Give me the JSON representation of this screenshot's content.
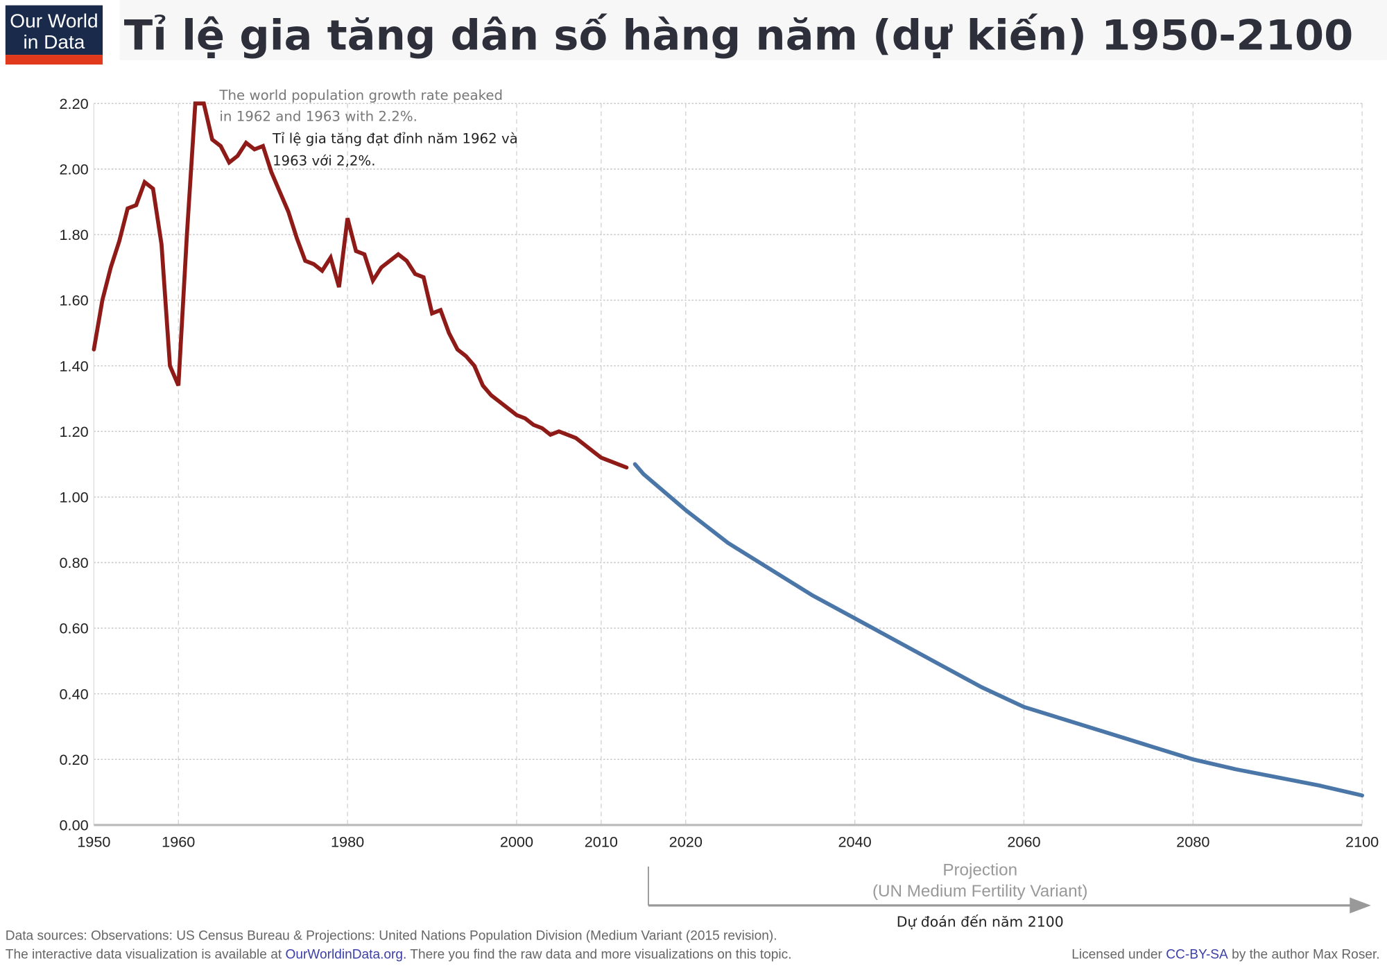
{
  "header": {
    "logo_line1": "Our World",
    "logo_line2": "in Data",
    "title": "Tỉ lệ gia tăng dân số hàng năm (dự kiến) 1950-2100"
  },
  "colors": {
    "observed": "#8e1b17",
    "projection": "#4a76a8",
    "logo_bg": "#1a2a4a",
    "logo_accent": "#e0391b",
    "link": "#3b3fa8"
  },
  "annotations": {
    "peak_en_1": "The world population growth rate peaked",
    "peak_en_2": "in 1962 and 1963 with 2.2%.",
    "peak_vi_1": "Tỉ lệ gia tăng đạt đỉnh năm 1962 và",
    "peak_vi_2": "1963 với 2,2%.",
    "projection_1": "Projection",
    "projection_2": "(UN Medium Fertility Variant)",
    "projection_vi": "Dự đoán đến năm 2100"
  },
  "footer": {
    "sources": "Data sources: Observations: US Census Bureau & Projections: United Nations Population Division (Medium Variant (2015 revision).",
    "interactive_pre": "The interactive data visualization is available at ",
    "interactive_link": "OurWorldinData.org.",
    "interactive_post": " There you find the raw data and more visualizations on this topic.",
    "license_pre": "Licensed under ",
    "license_link": "CC-BY-SA",
    "license_post": " by the author Max Roser."
  },
  "chart_data": {
    "type": "line",
    "title": "Tỉ lệ gia tăng dân số hàng năm (dự kiến) 1950-2100",
    "xlim": [
      1950,
      2100
    ],
    "ylim": [
      0,
      2.2
    ],
    "x_ticks": [
      "1950",
      "1960",
      "1980",
      "2000",
      "2010",
      "2020",
      "2040",
      "2060",
      "2080",
      "2100"
    ],
    "y_ticks": [
      "0.00",
      "0.20",
      "0.40",
      "0.60",
      "0.80",
      "1.00",
      "1.20",
      "1.40",
      "1.60",
      "1.80",
      "2.00",
      "2.20"
    ],
    "grid": true,
    "series": [
      {
        "key": "observed",
        "x": [
          1950,
          1951,
          1952,
          1953,
          1954,
          1955,
          1956,
          1957,
          1958,
          1959,
          1960,
          1961,
          1962,
          1963,
          1964,
          1965,
          1966,
          1967,
          1968,
          1969,
          1970,
          1971,
          1972,
          1973,
          1974,
          1975,
          1976,
          1977,
          1978,
          1979,
          1980,
          1981,
          1982,
          1983,
          1984,
          1985,
          1986,
          1987,
          1988,
          1989,
          1990,
          1991,
          1992,
          1993,
          1994,
          1995,
          1996,
          1997,
          1998,
          1999,
          2000,
          2001,
          2002,
          2003,
          2004,
          2005,
          2006,
          2007,
          2008,
          2009,
          2010,
          2011,
          2012,
          2013
        ],
        "y": [
          1.45,
          1.6,
          1.7,
          1.78,
          1.88,
          1.89,
          1.96,
          1.94,
          1.77,
          1.4,
          1.34,
          1.8,
          2.2,
          2.2,
          2.09,
          2.07,
          2.02,
          2.04,
          2.08,
          2.06,
          2.07,
          1.99,
          1.93,
          1.87,
          1.79,
          1.72,
          1.71,
          1.69,
          1.73,
          1.64,
          1.85,
          1.75,
          1.74,
          1.66,
          1.7,
          1.72,
          1.74,
          1.72,
          1.68,
          1.67,
          1.56,
          1.57,
          1.5,
          1.45,
          1.43,
          1.4,
          1.34,
          1.31,
          1.29,
          1.27,
          1.25,
          1.24,
          1.22,
          1.21,
          1.19,
          1.2,
          1.19,
          1.18,
          1.16,
          1.14,
          1.12,
          1.11,
          1.1,
          1.09
        ]
      },
      {
        "key": "projection",
        "x": [
          2014,
          2015,
          2020,
          2025,
          2030,
          2035,
          2040,
          2045,
          2050,
          2055,
          2060,
          2065,
          2070,
          2075,
          2080,
          2085,
          2090,
          2095,
          2100
        ],
        "y": [
          1.1,
          1.07,
          0.96,
          0.86,
          0.78,
          0.7,
          0.63,
          0.56,
          0.49,
          0.42,
          0.36,
          0.32,
          0.28,
          0.24,
          0.2,
          0.17,
          0.145,
          0.12,
          0.09
        ]
      }
    ]
  }
}
